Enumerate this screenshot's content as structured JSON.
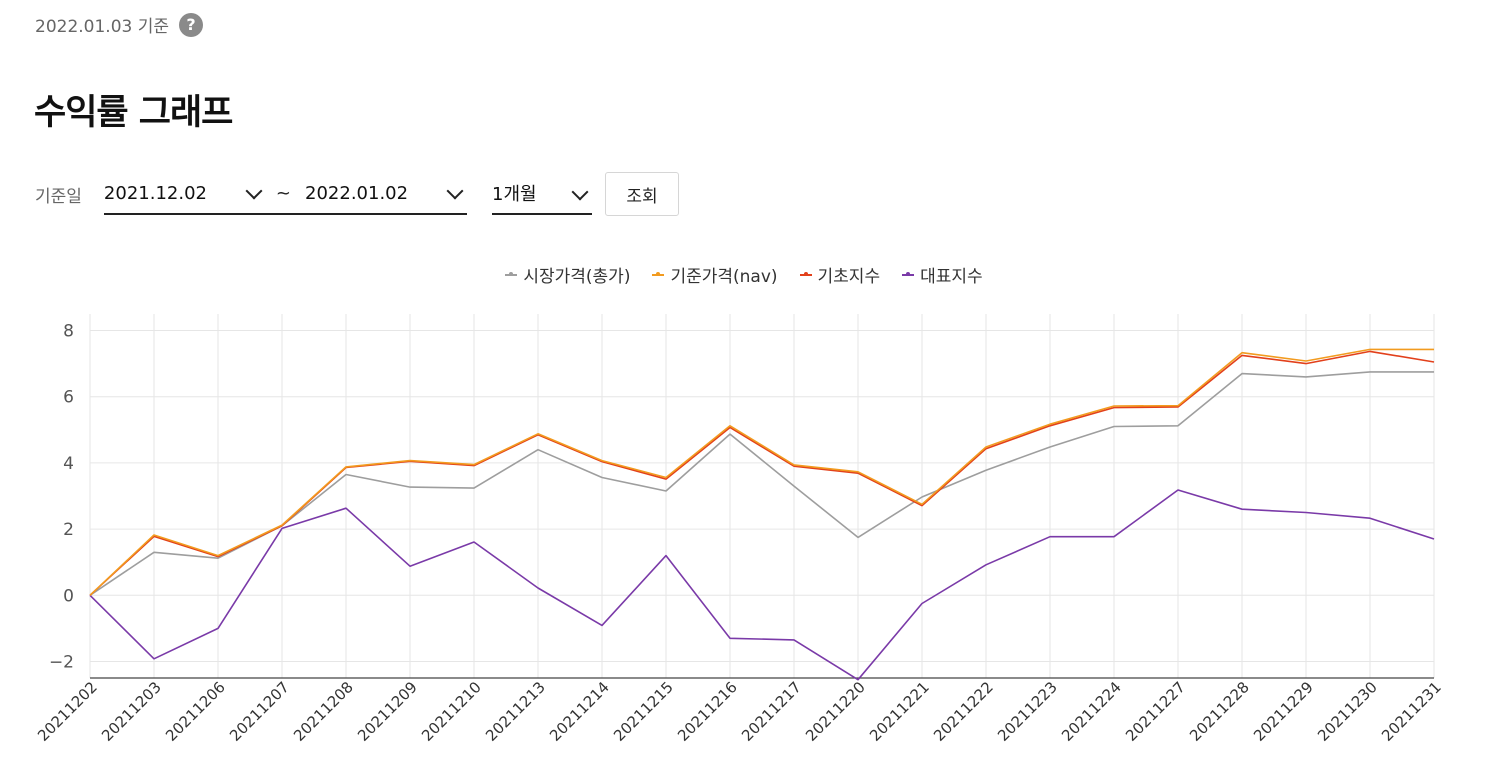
{
  "header": {
    "as_of": "2022.01.03 기준",
    "help_icon": "?"
  },
  "page_title": "수익률 그래프",
  "filters": {
    "label": "기준일",
    "start_date": "2021.12.02",
    "separator": "~",
    "end_date": "2022.01.02",
    "period": "1개월",
    "search_label": "조회"
  },
  "colors": {
    "market": "#9e9e9e",
    "nav": "#f29b1f",
    "base": "#e2401b",
    "rep": "#7a3aa8",
    "grid": "#e6e6e6",
    "axis": "#444444"
  },
  "chart_data": {
    "type": "line",
    "x": [
      "20211202",
      "20211203",
      "20211206",
      "20211207",
      "20211208",
      "20211209",
      "20211210",
      "20211213",
      "20211214",
      "20211215",
      "20211216",
      "20211217",
      "20211220",
      "20211221",
      "20211222",
      "20211223",
      "20211224",
      "20211227",
      "20211228",
      "20211229",
      "20211230",
      "20211231"
    ],
    "ylim": [
      -2.5,
      8.5
    ],
    "yticks": [
      "−2",
      "0",
      "2",
      "4",
      "6",
      "8"
    ],
    "ytick_values": [
      -2,
      0,
      2,
      4,
      6,
      8
    ],
    "grid": true,
    "legend_position": "top-center",
    "series": [
      {
        "name": "시장가격(총가)",
        "color_key": "market",
        "values": [
          0,
          1.3,
          1.12,
          2.1,
          3.65,
          3.27,
          3.24,
          4.4,
          3.56,
          3.15,
          4.87,
          3.3,
          1.75,
          2.97,
          3.78,
          4.48,
          5.1,
          5.12,
          6.7,
          6.6,
          6.75,
          6.75
        ]
      },
      {
        "name": "기준가격(nav)",
        "color_key": "nav",
        "values": [
          0,
          1.82,
          1.2,
          2.12,
          3.88,
          4.07,
          3.95,
          4.88,
          4.07,
          3.56,
          5.12,
          3.94,
          3.73,
          2.75,
          4.48,
          5.17,
          5.72,
          5.73,
          7.33,
          7.08,
          7.43,
          7.43
        ]
      },
      {
        "name": "기초지수",
        "color_key": "base",
        "values": [
          0,
          1.78,
          1.17,
          2.1,
          3.86,
          4.05,
          3.92,
          4.85,
          4.04,
          3.51,
          5.07,
          3.9,
          3.69,
          2.71,
          4.43,
          5.12,
          5.67,
          5.69,
          7.25,
          7.0,
          7.37,
          7.05
        ]
      },
      {
        "name": "대표지수",
        "color_key": "rep",
        "values": [
          0,
          -1.92,
          -1.0,
          2.02,
          2.63,
          0.88,
          1.61,
          0.22,
          -0.91,
          1.2,
          -1.3,
          -1.35,
          -2.55,
          -0.25,
          0.92,
          1.77,
          1.77,
          3.18,
          2.6,
          2.5,
          2.33,
          1.7
        ]
      }
    ]
  }
}
